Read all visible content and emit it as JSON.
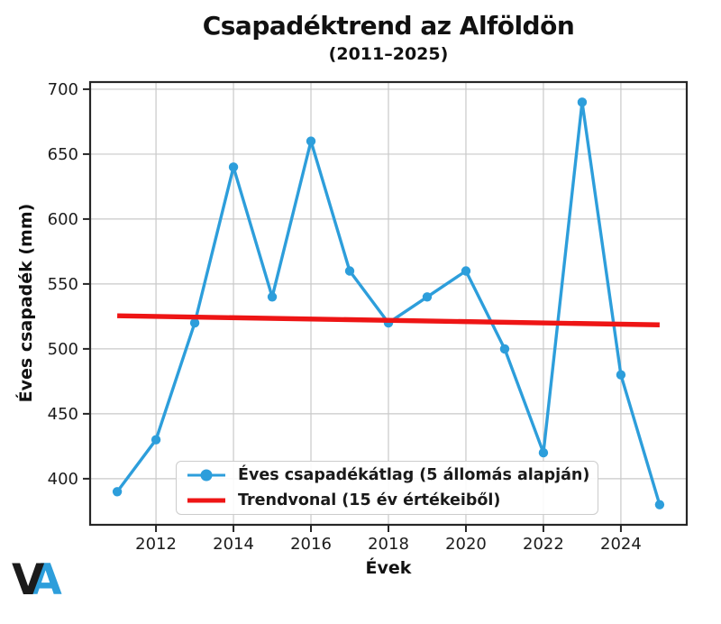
{
  "chart_data": {
    "type": "line",
    "title": "Csapadéktrend az Alföldön",
    "subtitle": "(2011–2025)",
    "xlabel": "Évek",
    "ylabel": "Éves csapadék (mm)",
    "x": [
      2011,
      2012,
      2013,
      2014,
      2015,
      2016,
      2017,
      2018,
      2019,
      2020,
      2021,
      2022,
      2023,
      2024,
      2025
    ],
    "series": [
      {
        "name": "Éves csapadékátlag (5 állomás alapján)",
        "type": "line-with-markers",
        "color": "#2d9edb",
        "values": [
          390,
          430,
          520,
          640,
          540,
          660,
          560,
          520,
          540,
          560,
          500,
          420,
          690,
          480,
          380
        ]
      },
      {
        "name": "Trendvonal (15 év értékeiből)",
        "type": "trendline",
        "color": "#ee1515",
        "x": [
          2011,
          2025
        ],
        "values": [
          525.5,
          518.5
        ]
      }
    ],
    "xlim": [
      2010.3,
      2025.7
    ],
    "ylim": [
      364.5,
      705.5
    ],
    "xticks": [
      2012,
      2014,
      2016,
      2018,
      2020,
      2022,
      2024
    ],
    "yticks": [
      400,
      450,
      500,
      550,
      600,
      650,
      700
    ],
    "grid": true,
    "legend_position": "lower center",
    "colors": {
      "grid": "#c9c9c9",
      "spine": "#262626",
      "tick_text": "#1c1c1c",
      "series_blue": "#2d9edb",
      "trend_red": "#ee1515"
    }
  },
  "logo": {
    "letter_v": "V",
    "letter_a": "A",
    "letter_v_color": "#1b1b1b",
    "letter_a_color": "#2d9edb"
  }
}
